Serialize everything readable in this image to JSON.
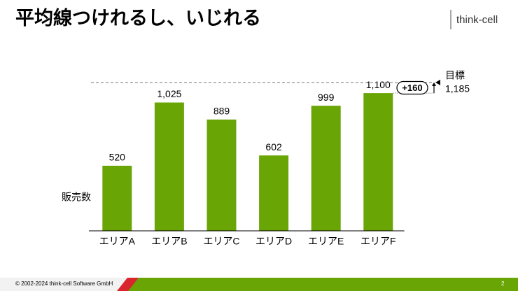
{
  "logo": "think-cell",
  "footer": {
    "copyright": "© 2002-2024 think-cell Software GmbH",
    "page": "2"
  },
  "chart_data": {
    "type": "bar",
    "title": "平均線つけれるし、いじれる",
    "y_label": "販売数",
    "categories": [
      "エリアA",
      "エリアB",
      "エリアC",
      "エリアD",
      "エリアE",
      "エリアF"
    ],
    "values": [
      520,
      1025,
      889,
      602,
      999,
      1100
    ],
    "value_labels": [
      "520",
      "1,025",
      "889",
      "602",
      "999",
      "1,100"
    ],
    "color": "#6aa506",
    "ylim": [
      0,
      1200
    ],
    "target": {
      "label": "目標",
      "value": 1185,
      "value_label": "1,185"
    },
    "difference_label": "+160"
  }
}
